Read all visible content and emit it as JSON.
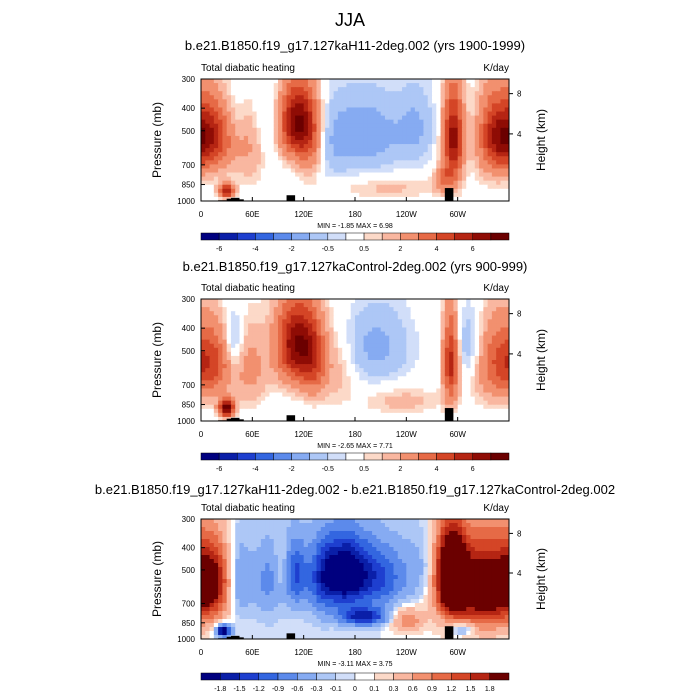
{
  "figure_title": "JJA",
  "chart_data": [
    {
      "type": "heatmap",
      "title": "b.e21.B1850.f19_g17.127kaH11-2deg.002 (yrs 1900-1999)",
      "left_string": "Total diabatic heating",
      "right_string": "K/day",
      "ylabel": "Pressure (mb)",
      "y2label": "Height (km)",
      "y_ticks": [
        300,
        400,
        500,
        700,
        850,
        1000
      ],
      "y2_ticks": [
        8,
        4
      ],
      "x_ticks": [
        "0",
        "60E",
        "120E",
        "180",
        "120W",
        "60W"
      ],
      "xlim": [
        0,
        360
      ],
      "ylim": [
        1000,
        300
      ],
      "min_max_label": "MIN =  -1.85  MAX =   6.98",
      "colorbar": {
        "levels": [
          -6,
          -5,
          -4,
          -3,
          -2,
          -1,
          -0.5,
          -0.25,
          0.25,
          0.5,
          1,
          2,
          3,
          4,
          5,
          6
        ],
        "labels": [
          "-6",
          "-4",
          "-2",
          "-0.5",
          "0.5",
          "2",
          "4",
          "6"
        ],
        "colors": [
          "#00007f",
          "#0a1fa8",
          "#1e3fcf",
          "#3366e0",
          "#5c8aeb",
          "#86abf2",
          "#adc7f6",
          "#d1def9",
          "#ffffff",
          "#fcd9c8",
          "#f9b7a0",
          "#f2906f",
          "#e66a46",
          "#d44526",
          "#b52513",
          "#8f0c05",
          "#6b0000"
        ]
      },
      "blobs": [
        {
          "lon": 8,
          "plev": 530,
          "rl": 22,
          "rp": 240,
          "v": 4.5
        },
        {
          "lon": 30,
          "plev": 900,
          "rl": 6,
          "rp": 90,
          "v": 5
        },
        {
          "lon": 38,
          "plev": 470,
          "rl": 9,
          "rp": 200,
          "v": -0.8
        },
        {
          "lon": 58,
          "plev": 620,
          "rl": 12,
          "rp": 300,
          "v": 0.8
        },
        {
          "lon": 82,
          "plev": 450,
          "rl": 12,
          "rp": 280,
          "v": -0.6
        },
        {
          "lon": 112,
          "plev": 460,
          "rl": 14,
          "rp": 230,
          "v": 6
        },
        {
          "lon": 128,
          "plev": 560,
          "rl": 10,
          "rp": 300,
          "v": 2
        },
        {
          "lon": 148,
          "plev": 620,
          "rl": 18,
          "rp": 350,
          "v": -0.4
        },
        {
          "lon": 190,
          "plev": 520,
          "rl": 35,
          "rp": 280,
          "v": -1.5
        },
        {
          "lon": 220,
          "plev": 880,
          "rl": 45,
          "rp": 120,
          "v": 0.6
        },
        {
          "lon": 252,
          "plev": 480,
          "rl": 15,
          "rp": 260,
          "v": -0.9
        },
        {
          "lon": 295,
          "plev": 540,
          "rl": 8,
          "rp": 320,
          "v": 5.5
        },
        {
          "lon": 285,
          "plev": 800,
          "rl": 8,
          "rp": 150,
          "v": 2
        },
        {
          "lon": 318,
          "plev": 520,
          "rl": 10,
          "rp": 260,
          "v": -0.7
        },
        {
          "lon": 345,
          "plev": 530,
          "rl": 18,
          "rp": 300,
          "v": 3
        }
      ],
      "terrain": [
        [
          10,
          28
        ],
        [
          20,
          40
        ],
        [
          30,
          65
        ],
        [
          35,
          80
        ],
        [
          40,
          55
        ],
        [
          100,
          120
        ],
        [
          285,
          300
        ]
      ]
    },
    {
      "type": "heatmap",
      "title": "b.e21.B1850.f19_g17.127kaControl-2deg.002 (yrs 900-999)",
      "left_string": "Total diabatic heating",
      "right_string": "K/day",
      "ylabel": "Pressure (mb)",
      "y2label": "Height (km)",
      "y_ticks": [
        300,
        400,
        500,
        700,
        850,
        1000
      ],
      "y2_ticks": [
        8,
        4
      ],
      "x_ticks": [
        "0",
        "60E",
        "120E",
        "180",
        "120W",
        "60W"
      ],
      "xlim": [
        0,
        360
      ],
      "ylim": [
        1000,
        300
      ],
      "min_max_label": "MIN =  -2.65  MAX =   7.71",
      "colorbar": {
        "levels": [
          -6,
          -5,
          -4,
          -3,
          -2,
          -1,
          -0.5,
          -0.25,
          0.25,
          0.5,
          1,
          2,
          3,
          4,
          5,
          6
        ],
        "labels": [
          "-6",
          "-4",
          "-2",
          "-0.5",
          "0.5",
          "2",
          "4",
          "6"
        ],
        "colors": [
          "#00007f",
          "#0a1fa8",
          "#1e3fcf",
          "#3366e0",
          "#5c8aeb",
          "#86abf2",
          "#adc7f6",
          "#d1def9",
          "#ffffff",
          "#fcd9c8",
          "#f9b7a0",
          "#f2906f",
          "#e66a46",
          "#d44526",
          "#b52513",
          "#8f0c05",
          "#6b0000"
        ]
      },
      "blobs": [
        {
          "lon": 10,
          "plev": 560,
          "rl": 18,
          "rp": 260,
          "v": 3.5
        },
        {
          "lon": 30,
          "plev": 880,
          "rl": 6,
          "rp": 100,
          "v": 7
        },
        {
          "lon": 38,
          "plev": 470,
          "rl": 8,
          "rp": 200,
          "v": -1.5
        },
        {
          "lon": 58,
          "plev": 600,
          "rl": 14,
          "rp": 320,
          "v": 1.2
        },
        {
          "lon": 112,
          "plev": 470,
          "rl": 16,
          "rp": 260,
          "v": 6
        },
        {
          "lon": 132,
          "plev": 560,
          "rl": 10,
          "rp": 280,
          "v": 2.5
        },
        {
          "lon": 160,
          "plev": 600,
          "rl": 14,
          "rp": 300,
          "v": 0.8
        },
        {
          "lon": 205,
          "plev": 480,
          "rl": 28,
          "rp": 260,
          "v": -1.2
        },
        {
          "lon": 235,
          "plev": 820,
          "rl": 30,
          "rp": 150,
          "v": 0.7
        },
        {
          "lon": 292,
          "plev": 560,
          "rl": 6,
          "rp": 330,
          "v": 4.5
        },
        {
          "lon": 315,
          "plev": 480,
          "rl": 12,
          "rp": 240,
          "v": -1.2
        },
        {
          "lon": 342,
          "plev": 560,
          "rl": 18,
          "rp": 320,
          "v": 2
        }
      ],
      "terrain": [
        [
          10,
          28
        ],
        [
          20,
          40
        ],
        [
          30,
          65
        ],
        [
          35,
          80
        ],
        [
          40,
          55
        ],
        [
          100,
          120
        ],
        [
          285,
          300
        ]
      ]
    },
    {
      "type": "heatmap",
      "title": "b.e21.B1850.f19_g17.127kaH11-2deg.002 - b.e21.B1850.f19_g17.127kaControl-2deg.002",
      "left_string": "Total diabatic heating",
      "right_string": "K/day",
      "ylabel": "Pressure (mb)",
      "y2label": "Height (km)",
      "y_ticks": [
        300,
        400,
        500,
        700,
        850,
        1000
      ],
      "y2_ticks": [
        8,
        4
      ],
      "x_ticks": [
        "0",
        "60E",
        "120E",
        "180",
        "120W",
        "60W"
      ],
      "xlim": [
        0,
        360
      ],
      "ylim": [
        1000,
        300
      ],
      "min_max_label": "MIN =  -3.11  MAX =   3.75",
      "colorbar": {
        "levels": [
          -1.8,
          -1.5,
          -1.2,
          -0.9,
          -0.6,
          -0.3,
          -0.1,
          0,
          0.1,
          0.3,
          0.6,
          0.9,
          1.2,
          1.5,
          1.8
        ],
        "labels": [
          "-1.8",
          "-1.5",
          "-1.2",
          "-0.9",
          "-0.6",
          "-0.3",
          "-0.1",
          "0",
          "0.1",
          "0.3",
          "0.6",
          "0.9",
          "1.2",
          "1.5",
          "1.8"
        ],
        "colors": [
          "#00007f",
          "#0a1fa8",
          "#1e3fcf",
          "#3366e0",
          "#5c8aeb",
          "#86abf2",
          "#adc7f6",
          "#d1def9",
          "#ffffff",
          "#fcd9c8",
          "#f9b7a0",
          "#f2906f",
          "#e66a46",
          "#d44526",
          "#b52513",
          "#6b0000"
        ]
      },
      "blobs": [
        {
          "lon": 12,
          "plev": 560,
          "rl": 16,
          "rp": 300,
          "v": 1.6
        },
        {
          "lon": 26,
          "plev": 920,
          "rl": 6,
          "rp": 80,
          "v": -2.5
        },
        {
          "lon": 45,
          "plev": 560,
          "rl": 10,
          "rp": 300,
          "v": -0.8
        },
        {
          "lon": 78,
          "plev": 560,
          "rl": 12,
          "rp": 320,
          "v": -0.7
        },
        {
          "lon": 95,
          "plev": 500,
          "rl": 6,
          "rp": 200,
          "v": 0.4
        },
        {
          "lon": 110,
          "plev": 520,
          "rl": 10,
          "rp": 260,
          "v": -1.2
        },
        {
          "lon": 140,
          "plev": 560,
          "rl": 12,
          "rp": 320,
          "v": -0.8
        },
        {
          "lon": 168,
          "plev": 520,
          "rl": 20,
          "rp": 260,
          "v": -2.4
        },
        {
          "lon": 190,
          "plev": 800,
          "rl": 20,
          "rp": 100,
          "v": -1.6
        },
        {
          "lon": 212,
          "plev": 540,
          "rl": 20,
          "rp": 260,
          "v": -1.1
        },
        {
          "lon": 240,
          "plev": 820,
          "rl": 14,
          "rp": 140,
          "v": 0.9
        },
        {
          "lon": 255,
          "plev": 500,
          "rl": 15,
          "rp": 250,
          "v": -0.4
        },
        {
          "lon": 292,
          "plev": 520,
          "rl": 12,
          "rp": 320,
          "v": 2.8
        },
        {
          "lon": 330,
          "plev": 600,
          "rl": 30,
          "rp": 380,
          "v": 2.4
        },
        {
          "lon": 305,
          "plev": 900,
          "rl": 10,
          "rp": 90,
          "v": -0.8
        }
      ],
      "terrain": [
        [
          10,
          28
        ],
        [
          20,
          40
        ],
        [
          30,
          65
        ],
        [
          35,
          80
        ],
        [
          40,
          55
        ],
        [
          100,
          120
        ],
        [
          285,
          300
        ]
      ]
    }
  ]
}
